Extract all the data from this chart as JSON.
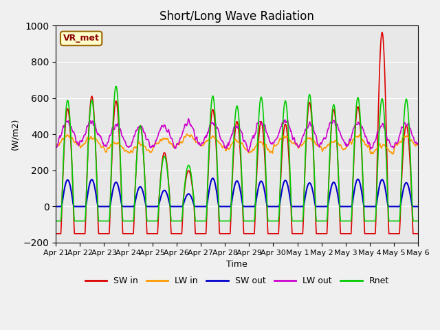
{
  "title": "Short/Long Wave Radiation",
  "ylabel": "(W/m2)",
  "xlabel": "Time",
  "ylim": [
    -200,
    1000
  ],
  "annotation": "VR_met",
  "fig_bg_color": "#f0f0f0",
  "plot_bg_color": "#e8e8e8",
  "series": {
    "SW_in": {
      "color": "#dd0000",
      "label": "SW in"
    },
    "LW_in": {
      "color": "#ff9900",
      "label": "LW in"
    },
    "SW_out": {
      "color": "#0000cc",
      "label": "SW out"
    },
    "LW_out": {
      "color": "#cc00cc",
      "label": "LW out"
    },
    "Rnet": {
      "color": "#00cc00",
      "label": "Rnet"
    }
  },
  "xtick_labels": [
    "Apr 21",
    "Apr 22",
    "Apr 23",
    "Apr 24",
    "Apr 25",
    "Apr 26",
    "Apr 27",
    "Apr 28",
    "Apr 29",
    "Apr 30",
    "May 1",
    "May 2",
    "May 3",
    "May 4",
    "May 5",
    "May 6"
  ],
  "n_days": 15,
  "points_per_day": 48
}
